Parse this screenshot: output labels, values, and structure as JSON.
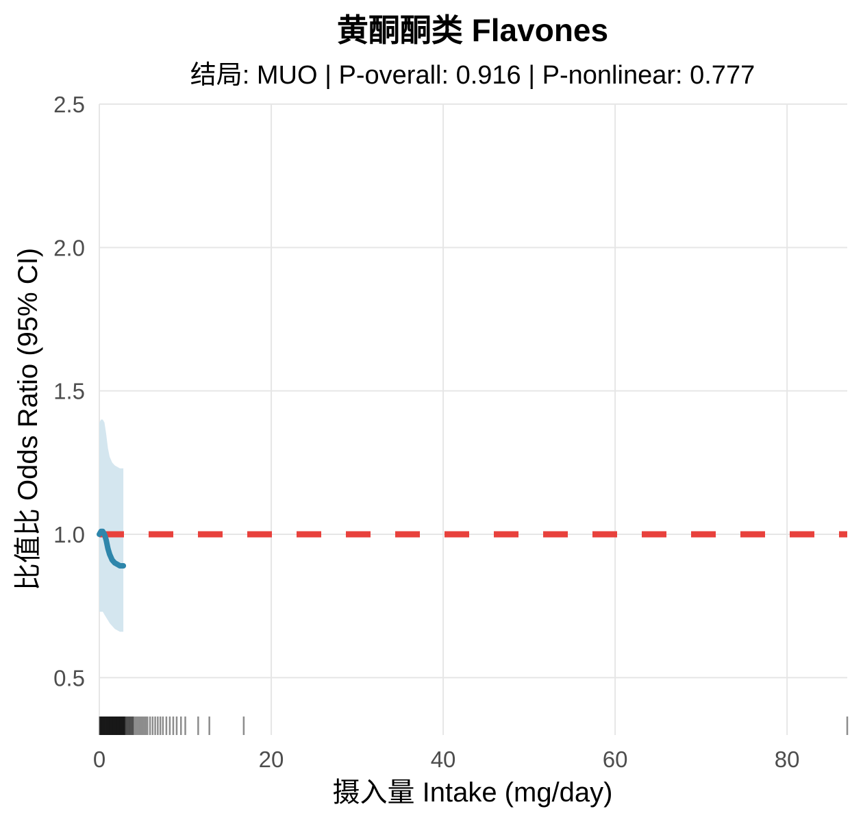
{
  "chart_data": {
    "type": "line",
    "title": "黄酮酮类 Flavones",
    "subtitle": "结局: MUO | P-overall: 0.916 | P-nonlinear: 0.777",
    "xlabel": "摄入量 Intake (mg/day)",
    "ylabel": "比值比 Odds Ratio (95% CI)",
    "xlim": [
      0,
      87
    ],
    "ylim": [
      0.3,
      2.5
    ],
    "x_ticks": [
      0,
      20,
      40,
      60,
      80
    ],
    "x_tick_labels": [
      "0",
      "20",
      "40",
      "60",
      "80"
    ],
    "y_ticks": [
      0.5,
      1.0,
      1.5,
      2.0,
      2.5
    ],
    "y_tick_labels": [
      "0.5",
      "1.0",
      "1.5",
      "2.0",
      "2.5"
    ],
    "grid": true,
    "reference_line": {
      "y": 1.0,
      "color": "#e8413c",
      "style": "dashed"
    },
    "series": [
      {
        "color": "#2e86ab",
        "band_color": "#d4e6ef",
        "x": [
          0.0,
          0.2,
          0.4,
          0.6,
          0.8,
          1.0,
          1.2,
          1.5,
          1.8,
          2.1,
          2.4,
          2.8
        ],
        "y": [
          1.0,
          1.01,
          1.01,
          1.0,
          0.98,
          0.95,
          0.93,
          0.91,
          0.9,
          0.895,
          0.89,
          0.89
        ],
        "lower": [
          0.73,
          0.73,
          0.73,
          0.72,
          0.71,
          0.7,
          0.69,
          0.68,
          0.67,
          0.665,
          0.66,
          0.66
        ],
        "upper": [
          1.39,
          1.4,
          1.4,
          1.39,
          1.35,
          1.3,
          1.27,
          1.25,
          1.24,
          1.235,
          1.23,
          1.23
        ]
      }
    ],
    "rug": {
      "color": "#000000",
      "values": [
        0.05,
        0.1,
        0.15,
        0.2,
        0.25,
        0.3,
        0.35,
        0.4,
        0.45,
        0.5,
        0.55,
        0.6,
        0.65,
        0.7,
        0.75,
        0.8,
        0.85,
        0.9,
        0.95,
        1.0,
        1.05,
        1.1,
        1.15,
        1.2,
        1.25,
        1.3,
        1.35,
        1.4,
        1.45,
        1.5,
        1.55,
        1.6,
        1.65,
        1.7,
        1.75,
        1.8,
        1.85,
        1.9,
        1.95,
        2.0,
        2.05,
        2.1,
        2.15,
        2.2,
        2.25,
        2.3,
        2.35,
        2.4,
        2.45,
        2.5,
        2.55,
        2.6,
        2.65,
        2.7,
        2.75,
        2.8,
        2.85,
        2.9,
        2.95,
        3.0,
        3.1,
        3.2,
        3.3,
        3.4,
        3.5,
        3.6,
        3.7,
        3.8,
        3.9,
        4.0,
        4.2,
        4.4,
        4.6,
        4.8,
        5.0,
        5.2,
        5.4,
        5.6,
        5.9,
        6.2,
        6.5,
        6.8,
        7.1,
        7.4,
        7.8,
        8.2,
        8.6,
        9.0,
        9.5,
        10.0,
        11.5,
        12.8,
        16.8,
        87.0
      ]
    }
  }
}
